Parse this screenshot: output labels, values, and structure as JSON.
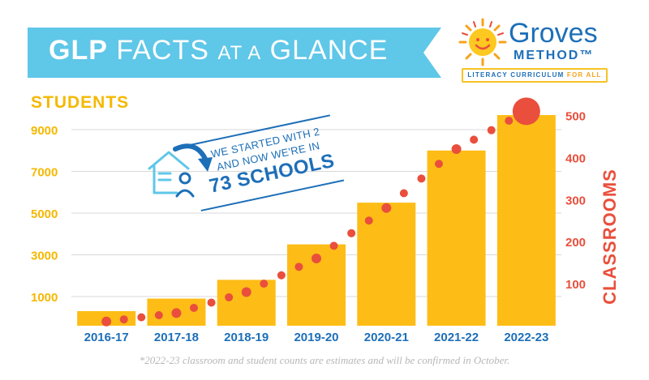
{
  "banner": {
    "word1": "GLP",
    "word2": "FACTS",
    "word3": "AT A",
    "word4": "GLANCE"
  },
  "logo": {
    "name": "Groves",
    "sub": "METHOD™",
    "tag_main": "LITERACY CURRICULUM",
    "tag_accent": "FOR ALL",
    "icon": "smiling-sun-icon"
  },
  "callout": {
    "line1": "WE STARTED WITH 2",
    "line2": "AND NOW WE'RE IN",
    "big": "73 SCHOOLS",
    "icon": "school-house-icon",
    "arrow": "curved-arrow-icon"
  },
  "footnote": "*2022-23 classroom and student counts are estimates and will be confirmed in October.",
  "colors": {
    "banner": "#5fc7e8",
    "bars": "#fdbd16",
    "dots": "#e94f3c",
    "axis_left": "#f5b800",
    "axis_right": "#e94f3c",
    "xticks": "#1d6fb8",
    "grid": "#d9d9d9"
  },
  "chart_data": {
    "type": "bar",
    "categories": [
      "2016-17",
      "2017-18",
      "2018-19",
      "2019-20",
      "2020-21",
      "2021-22",
      "2022-23"
    ],
    "series": [
      {
        "name": "STUDENTS",
        "type": "bar",
        "axis": "left",
        "values": [
          300,
          900,
          1800,
          3500,
          5500,
          8000,
          9700
        ]
      },
      {
        "name": "CLASSROOMS",
        "type": "scatter",
        "axis": "right",
        "values": [
          10,
          30,
          80,
          160,
          280,
          420,
          510
        ]
      }
    ],
    "y_left": {
      "label": "STUDENTS",
      "ticks": [
        "1000",
        "3000",
        "5000",
        "7000",
        "9000"
      ],
      "range": [
        -400,
        9700
      ]
    },
    "y_right": {
      "label": "CLASSROOMS",
      "ticks": [
        "100",
        "200",
        "300",
        "400",
        "500"
      ],
      "range": [
        0,
        580
      ]
    },
    "grid": true
  }
}
